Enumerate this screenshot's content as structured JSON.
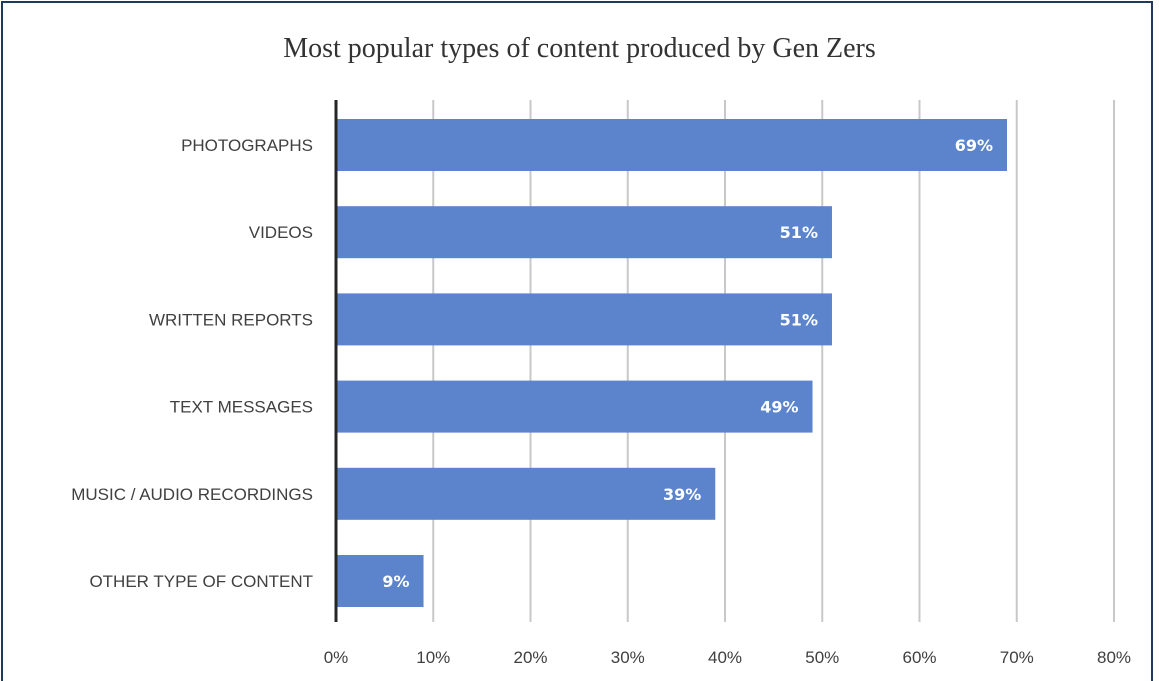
{
  "chart_data": {
    "type": "bar",
    "orientation": "horizontal",
    "title": "Most popular types of content produced by Gen Zers",
    "xlabel": "",
    "ylabel": "",
    "categories": [
      "PHOTOGRAPHS",
      "VIDEOS",
      "WRITTEN REPORTS",
      "TEXT MESSAGES",
      "MUSIC / AUDIO RECORDINGS",
      "OTHER TYPE OF CONTENT"
    ],
    "values": [
      69,
      51,
      51,
      49,
      39,
      9
    ],
    "data_labels": [
      "69%",
      "51%",
      "51%",
      "49%",
      "39%",
      "9%"
    ],
    "xlim": [
      0,
      80
    ],
    "x_ticks": [
      0,
      10,
      20,
      30,
      40,
      50,
      60,
      70,
      80
    ],
    "x_tick_labels": [
      "0%",
      "10%",
      "20%",
      "30%",
      "40%",
      "50%",
      "60%",
      "70%",
      "80%"
    ],
    "grid": "vertical",
    "legend": "none",
    "colors": {
      "bar": "#5b84cd",
      "gridline": "#c8c8c8",
      "axis": "#262626",
      "frame": "#1f3a5c"
    }
  }
}
